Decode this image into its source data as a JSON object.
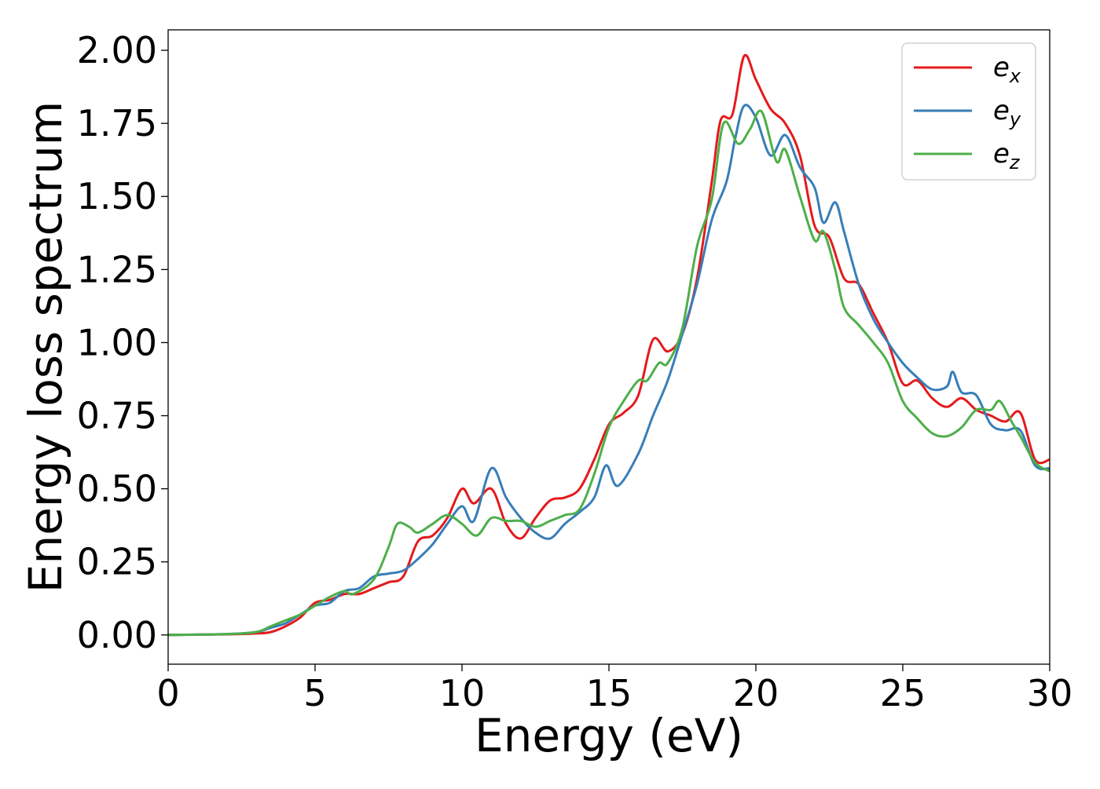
{
  "chart_data": {
    "type": "line",
    "title": "",
    "xlabel": "Energy (eV)",
    "ylabel": "Energy loss spectrum",
    "xlim": [
      0,
      30
    ],
    "ylim": [
      -0.1,
      2.07
    ],
    "xticks": [
      0,
      5,
      10,
      15,
      20,
      25,
      30
    ],
    "xtick_labels": [
      "0",
      "5",
      "10",
      "15",
      "20",
      "25",
      "30"
    ],
    "yticks": [
      0.0,
      0.25,
      0.5,
      0.75,
      1.0,
      1.25,
      1.5,
      1.75,
      2.0
    ],
    "ytick_labels": [
      "0.00",
      "0.25",
      "0.50",
      "0.75",
      "1.00",
      "1.25",
      "1.50",
      "1.75",
      "2.00"
    ],
    "grid": false,
    "legend_position": "top-right",
    "series": [
      {
        "name": "e_x",
        "label_main": "e",
        "label_sub": "x",
        "color": "#e41a1c",
        "points": [
          [
            0,
            0
          ],
          [
            2,
            0.002
          ],
          [
            3,
            0.005
          ],
          [
            3.5,
            0.01
          ],
          [
            4,
            0.03
          ],
          [
            4.5,
            0.06
          ],
          [
            5,
            0.11
          ],
          [
            5.5,
            0.12
          ],
          [
            6,
            0.14
          ],
          [
            6.5,
            0.14
          ],
          [
            7,
            0.16
          ],
          [
            7.5,
            0.18
          ],
          [
            8,
            0.2
          ],
          [
            8.5,
            0.32
          ],
          [
            9,
            0.34
          ],
          [
            9.5,
            0.4
          ],
          [
            10,
            0.5
          ],
          [
            10.4,
            0.45
          ],
          [
            11,
            0.5
          ],
          [
            11.5,
            0.38
          ],
          [
            12,
            0.33
          ],
          [
            12.5,
            0.4
          ],
          [
            13,
            0.46
          ],
          [
            13.5,
            0.47
          ],
          [
            14,
            0.5
          ],
          [
            14.5,
            0.6
          ],
          [
            15,
            0.72
          ],
          [
            15.5,
            0.76
          ],
          [
            16,
            0.82
          ],
          [
            16.5,
            1.01
          ],
          [
            17,
            0.97
          ],
          [
            17.5,
            1.03
          ],
          [
            18,
            1.22
          ],
          [
            18.5,
            1.55
          ],
          [
            18.8,
            1.76
          ],
          [
            19.2,
            1.78
          ],
          [
            19.6,
            1.98
          ],
          [
            20,
            1.9
          ],
          [
            20.5,
            1.8
          ],
          [
            21,
            1.75
          ],
          [
            21.5,
            1.64
          ],
          [
            22,
            1.4
          ],
          [
            22.5,
            1.36
          ],
          [
            23,
            1.22
          ],
          [
            23.5,
            1.2
          ],
          [
            24,
            1.1
          ],
          [
            24.5,
            1.0
          ],
          [
            25,
            0.86
          ],
          [
            25.5,
            0.87
          ],
          [
            26,
            0.81
          ],
          [
            26.5,
            0.78
          ],
          [
            27,
            0.81
          ],
          [
            27.5,
            0.77
          ],
          [
            28,
            0.75
          ],
          [
            28.5,
            0.73
          ],
          [
            29,
            0.76
          ],
          [
            29.5,
            0.6
          ],
          [
            30,
            0.6
          ]
        ]
      },
      {
        "name": "e_y",
        "label_main": "e",
        "label_sub": "y",
        "color": "#377eb8",
        "points": [
          [
            0,
            0
          ],
          [
            2,
            0.003
          ],
          [
            3,
            0.01
          ],
          [
            3.5,
            0.025
          ],
          [
            4,
            0.04
          ],
          [
            4.5,
            0.07
          ],
          [
            5,
            0.1
          ],
          [
            5.5,
            0.11
          ],
          [
            6,
            0.15
          ],
          [
            6.5,
            0.16
          ],
          [
            7,
            0.2
          ],
          [
            7.5,
            0.21
          ],
          [
            8,
            0.22
          ],
          [
            8.5,
            0.26
          ],
          [
            9,
            0.31
          ],
          [
            9.5,
            0.38
          ],
          [
            10,
            0.44
          ],
          [
            10.4,
            0.39
          ],
          [
            11,
            0.57
          ],
          [
            11.5,
            0.47
          ],
          [
            12,
            0.4
          ],
          [
            12.5,
            0.35
          ],
          [
            13,
            0.33
          ],
          [
            13.5,
            0.38
          ],
          [
            14,
            0.42
          ],
          [
            14.5,
            0.47
          ],
          [
            14.9,
            0.58
          ],
          [
            15.3,
            0.51
          ],
          [
            16,
            0.62
          ],
          [
            16.5,
            0.75
          ],
          [
            17,
            0.87
          ],
          [
            17.5,
            1.03
          ],
          [
            18,
            1.2
          ],
          [
            18.5,
            1.42
          ],
          [
            19,
            1.55
          ],
          [
            19.3,
            1.7
          ],
          [
            19.6,
            1.81
          ],
          [
            20,
            1.77
          ],
          [
            20.5,
            1.64
          ],
          [
            21,
            1.71
          ],
          [
            21.5,
            1.6
          ],
          [
            22,
            1.53
          ],
          [
            22.3,
            1.41
          ],
          [
            22.7,
            1.48
          ],
          [
            23,
            1.38
          ],
          [
            23.5,
            1.2
          ],
          [
            24,
            1.08
          ],
          [
            24.5,
            1.0
          ],
          [
            25,
            0.93
          ],
          [
            25.5,
            0.88
          ],
          [
            26,
            0.84
          ],
          [
            26.5,
            0.85
          ],
          [
            26.7,
            0.9
          ],
          [
            27,
            0.83
          ],
          [
            27.5,
            0.82
          ],
          [
            28,
            0.72
          ],
          [
            28.5,
            0.7
          ],
          [
            29,
            0.7
          ],
          [
            29.5,
            0.58
          ],
          [
            30,
            0.57
          ]
        ]
      },
      {
        "name": "e_z",
        "label_main": "e",
        "label_sub": "z",
        "color": "#4daf4a",
        "points": [
          [
            0,
            0
          ],
          [
            2,
            0.003
          ],
          [
            3,
            0.01
          ],
          [
            3.5,
            0.03
          ],
          [
            4,
            0.05
          ],
          [
            4.5,
            0.07
          ],
          [
            5,
            0.1
          ],
          [
            5.5,
            0.13
          ],
          [
            6,
            0.15
          ],
          [
            6.3,
            0.14
          ],
          [
            7,
            0.19
          ],
          [
            7.5,
            0.3
          ],
          [
            7.8,
            0.38
          ],
          [
            8.2,
            0.37
          ],
          [
            8.5,
            0.35
          ],
          [
            9,
            0.38
          ],
          [
            9.5,
            0.41
          ],
          [
            10,
            0.38
          ],
          [
            10.5,
            0.34
          ],
          [
            11,
            0.4
          ],
          [
            11.5,
            0.39
          ],
          [
            12,
            0.39
          ],
          [
            12.5,
            0.37
          ],
          [
            13,
            0.39
          ],
          [
            13.5,
            0.41
          ],
          [
            14,
            0.43
          ],
          [
            14.5,
            0.55
          ],
          [
            15,
            0.71
          ],
          [
            15.5,
            0.8
          ],
          [
            16,
            0.87
          ],
          [
            16.3,
            0.87
          ],
          [
            16.7,
            0.93
          ],
          [
            17,
            0.93
          ],
          [
            17.5,
            1.05
          ],
          [
            18,
            1.33
          ],
          [
            18.5,
            1.49
          ],
          [
            18.9,
            1.75
          ],
          [
            19.4,
            1.68
          ],
          [
            19.8,
            1.73
          ],
          [
            20.2,
            1.79
          ],
          [
            20.7,
            1.62
          ],
          [
            21,
            1.66
          ],
          [
            21.5,
            1.5
          ],
          [
            22,
            1.35
          ],
          [
            22.3,
            1.38
          ],
          [
            22.7,
            1.25
          ],
          [
            23,
            1.12
          ],
          [
            23.5,
            1.06
          ],
          [
            24,
            1.0
          ],
          [
            24.5,
            0.93
          ],
          [
            25,
            0.8
          ],
          [
            25.5,
            0.74
          ],
          [
            26,
            0.69
          ],
          [
            26.5,
            0.68
          ],
          [
            27,
            0.71
          ],
          [
            27.5,
            0.77
          ],
          [
            28,
            0.77
          ],
          [
            28.3,
            0.8
          ],
          [
            28.7,
            0.73
          ],
          [
            29,
            0.68
          ],
          [
            29.5,
            0.59
          ],
          [
            30,
            0.56
          ]
        ]
      }
    ]
  }
}
